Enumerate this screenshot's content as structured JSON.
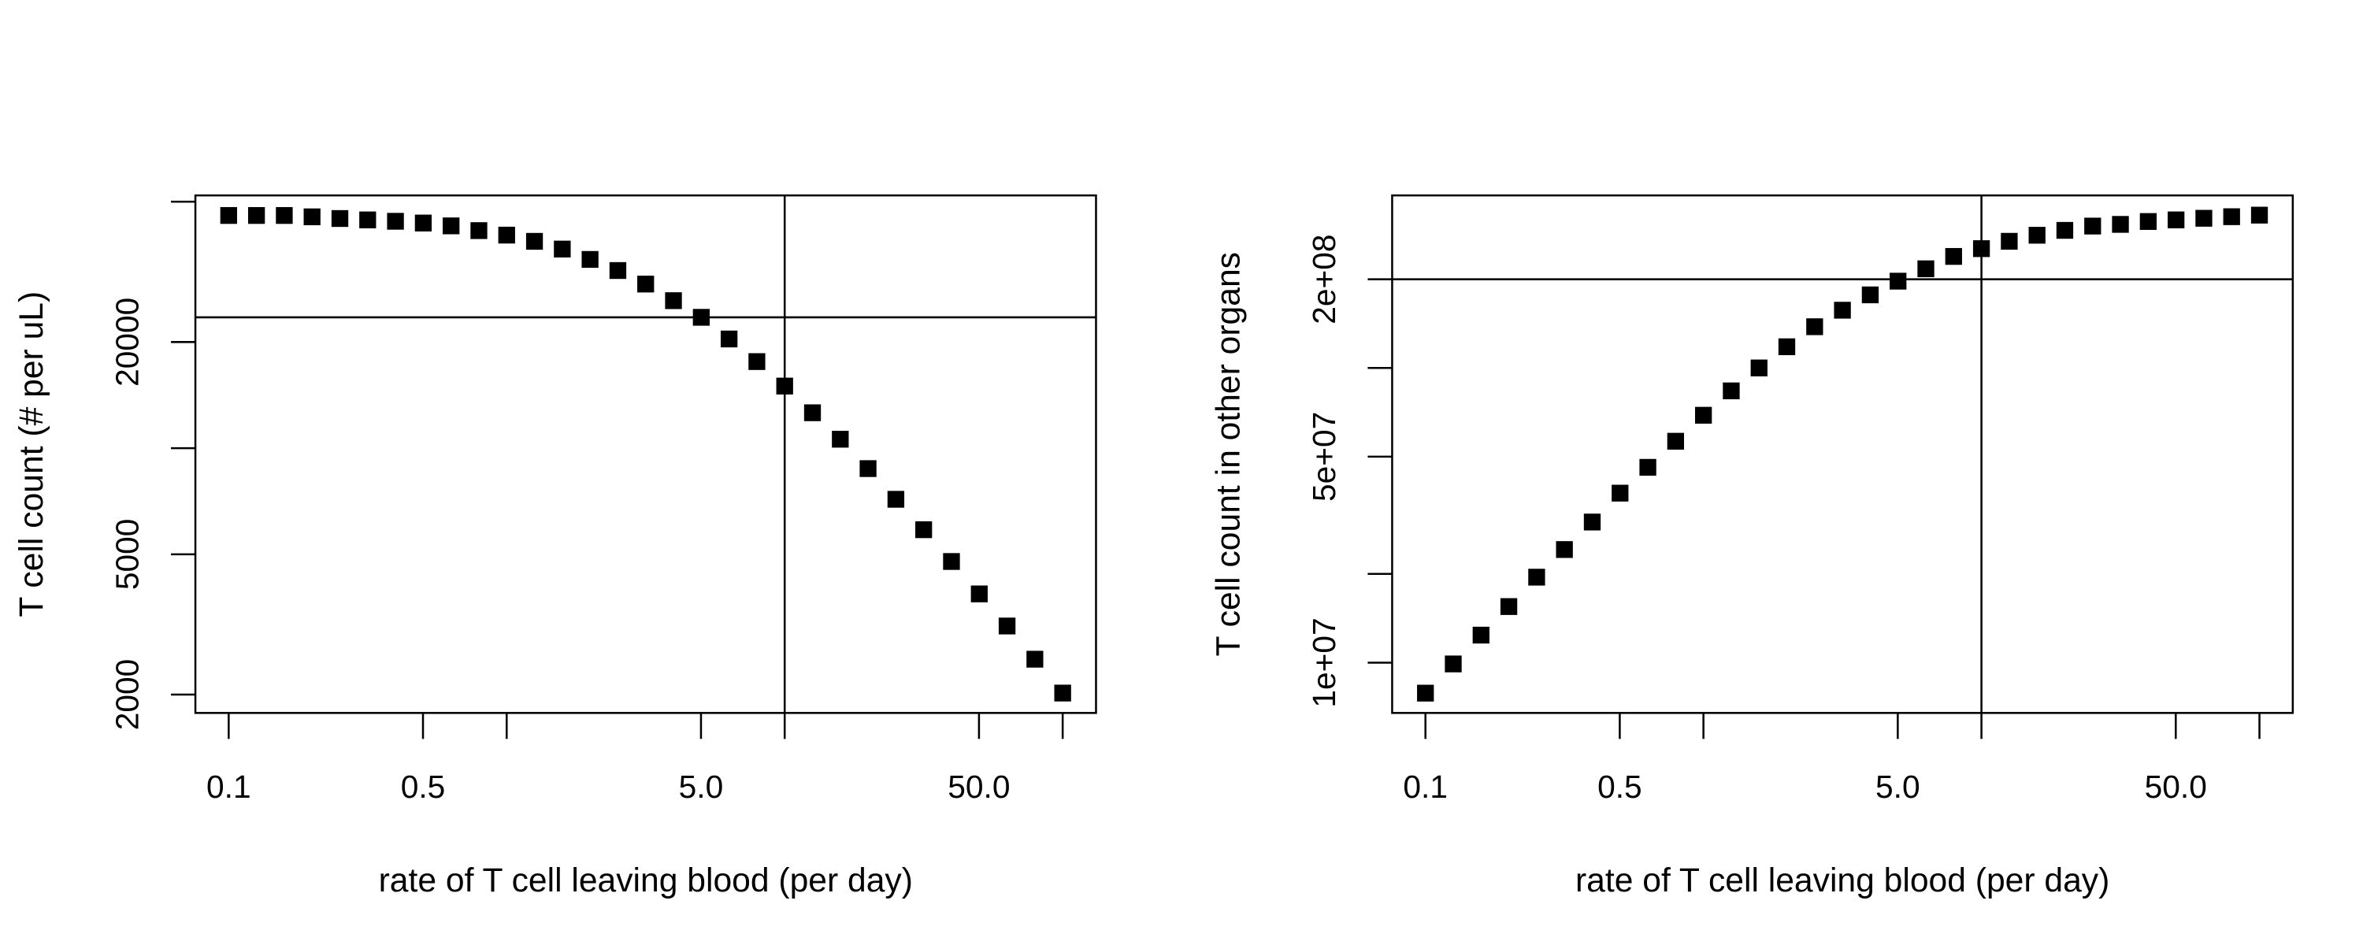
{
  "chart_data": [
    {
      "type": "scatter",
      "xlabel": "rate of T cell leaving blood (per day)",
      "ylabel": "T cell count (# per uL)",
      "xlog": true,
      "ylog": true,
      "color": "#000000",
      "marker": "square",
      "x": [
        0.1,
        0.1259,
        0.1585,
        0.1995,
        0.2512,
        0.3162,
        0.3981,
        0.5012,
        0.631,
        0.7943,
        1,
        1.259,
        1.585,
        1.995,
        2.512,
        3.162,
        3.981,
        5.012,
        6.31,
        7.943,
        10,
        12.59,
        15.85,
        19.95,
        25.12,
        31.62,
        39.81,
        50.12,
        63.1,
        79.43,
        100
      ],
      "values": [
        45700,
        45700,
        45700,
        45300,
        44800,
        44400,
        44000,
        43500,
        42700,
        41400,
        40200,
        38600,
        36700,
        34300,
        31900,
        29200,
        26200,
        23500,
        20400,
        17600,
        15000,
        12600,
        10600,
        8750,
        7160,
        5870,
        4770,
        3860,
        3130,
        2520,
        2020
      ],
      "xlim": [
        0.0759,
        131.8
      ],
      "ylim": [
        1774,
        52100
      ],
      "xticks": [
        0.1,
        0.5,
        {
          "value": 1,
          "label": null
        },
        {
          "value": 5,
          "label": "5.0"
        },
        {
          "value": 10,
          "label": null
        },
        {
          "value": 50,
          "label": "50.0"
        },
        {
          "value": 100,
          "label": null
        }
      ],
      "yticks": [
        2000,
        5000,
        {
          "value": 10000,
          "label": null
        },
        20000,
        {
          "value": 50000,
          "label": null
        }
      ],
      "vline": 10,
      "hline": 23500
    },
    {
      "type": "scatter",
      "xlabel": "rate of T cell leaving blood (per day)",
      "ylabel": "T cell count in other organs",
      "xlog": true,
      "ylog": true,
      "color": "#000000",
      "marker": "square",
      "x": [
        0.1,
        0.1259,
        0.1585,
        0.1995,
        0.2512,
        0.3162,
        0.3981,
        0.5012,
        0.631,
        0.7943,
        1,
        1.259,
        1.585,
        1.995,
        2.512,
        3.162,
        3.981,
        5.012,
        6.31,
        7.943,
        10,
        12.59,
        15.85,
        19.95,
        25.12,
        31.62,
        39.81,
        50.12,
        63.1,
        79.43,
        100
      ],
      "values": [
        7880000,
        9900000,
        12400000,
        15500000,
        19500000,
        24200000,
        30000000,
        37600000,
        46000000,
        56400000,
        69100000,
        83600000,
        100000000,
        118000000,
        138000000,
        157000000,
        177000000,
        197000000,
        217000000,
        239000000,
        254000000,
        269000000,
        282000000,
        293000000,
        303000000,
        307000000,
        314000000,
        318000000,
        322000000,
        326000000,
        330000000
      ],
      "xlim": [
        0.0759,
        131.8
      ],
      "ylim": [
        6750000,
        385000000
      ],
      "xticks": [
        0.1,
        0.5,
        {
          "value": 1,
          "label": null
        },
        {
          "value": 5,
          "label": "5.0"
        },
        {
          "value": 10,
          "label": null
        },
        {
          "value": 50,
          "label": "50.0"
        },
        {
          "value": 100,
          "label": null
        }
      ],
      "yticks": [
        {
          "value": 10000000,
          "label": "1e+07"
        },
        {
          "value": 20000000,
          "label": null
        },
        {
          "value": 50000000,
          "label": "5e+07"
        },
        {
          "value": 100000000,
          "label": null
        },
        {
          "value": 200000000,
          "label": "2e+08"
        }
      ],
      "vline": 10,
      "hline": 200000000
    }
  ]
}
